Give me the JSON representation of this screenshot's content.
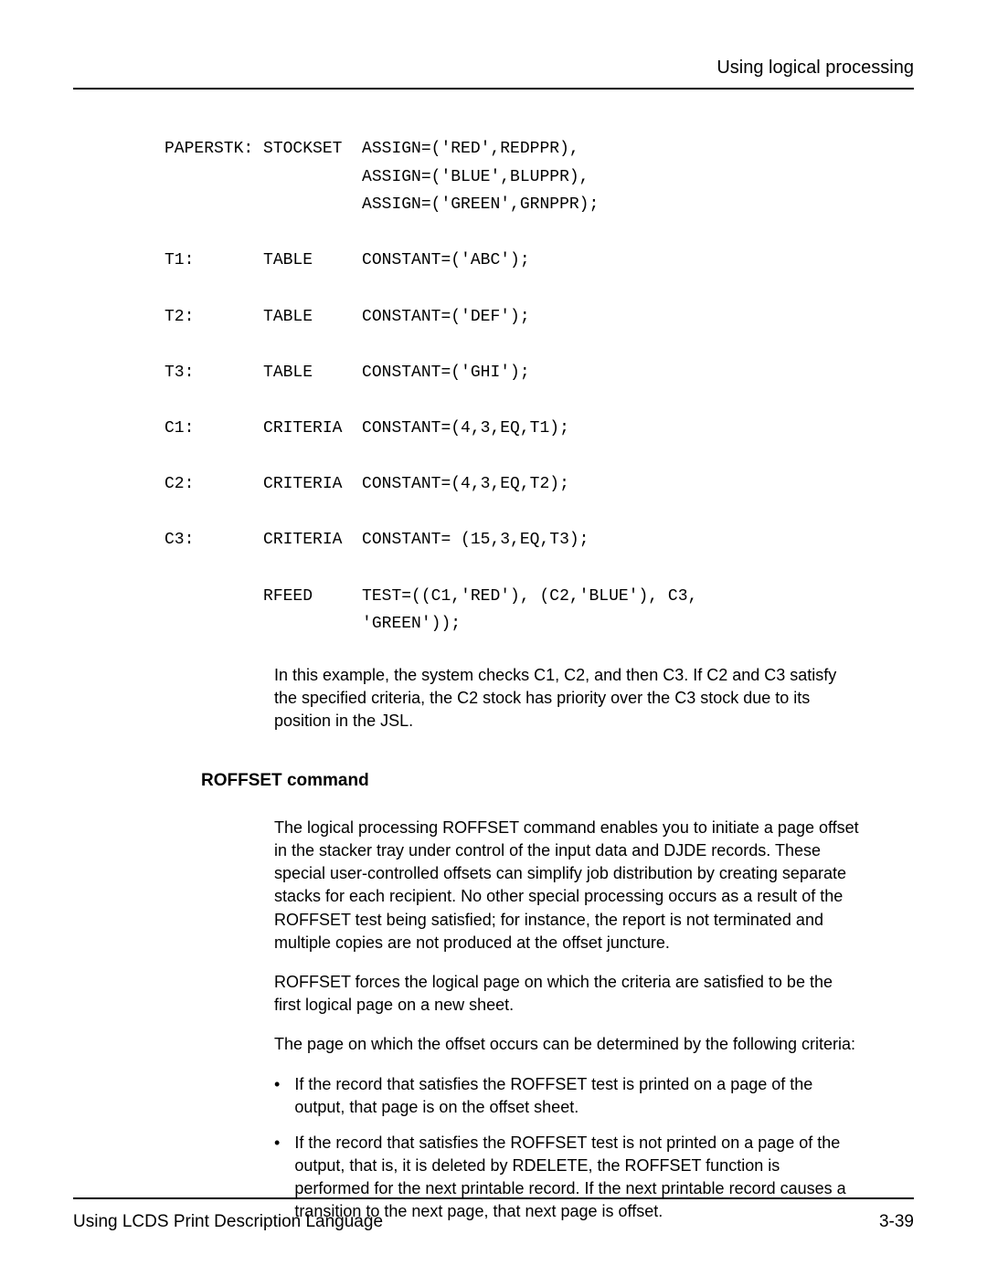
{
  "header": {
    "title": "Using logical processing"
  },
  "code": {
    "lines": [
      "PAPERSTK: STOCKSET  ASSIGN=('RED',REDPPR),",
      "                    ASSIGN=('BLUE',BLUPPR),",
      "                    ASSIGN=('GREEN',GRNPPR);",
      "",
      "T1:       TABLE     CONSTANT=('ABC');",
      "",
      "T2:       TABLE     CONSTANT=('DEF');",
      "",
      "T3:       TABLE     CONSTANT=('GHI');",
      "",
      "C1:       CRITERIA  CONSTANT=(4,3,EQ,T1);",
      "",
      "C2:       CRITERIA  CONSTANT=(4,3,EQ,T2);",
      "",
      "C3:       CRITERIA  CONSTANT= (15,3,EQ,T3);",
      "",
      "          RFEED     TEST=((C1,'RED'), (C2,'BLUE'), C3,",
      "                    'GREEN'));"
    ],
    "explanation": "In this example, the system checks C1, C2, and then C3. If C2 and C3 satisfy the specified criteria, the C2 stock has priority over the C3 stock due to its position in the JSL."
  },
  "section": {
    "heading": "ROFFSET command",
    "para1": "The logical processing ROFFSET command enables you to initiate a page offset in the stacker tray under control of the input data and DJDE records. These special user-controlled offsets can simplify job distribution by creating separate stacks for each recipient. No other special processing occurs as a result of the ROFFSET test being satisfied; for instance, the report is not terminated and multiple copies are not produced at the offset juncture.",
    "para2": "ROFFSET forces the logical page on which the criteria are satisfied to be the first logical page on a new sheet.",
    "para3": "The page on which the offset occurs can be determined by the following criteria:",
    "bullets": [
      "If the record that satisfies the ROFFSET test is printed on a page of the output, that page is on the offset sheet.",
      "If the record that satisfies the ROFFSET test is not printed on a page of the output, that is, it is deleted by RDELETE, the ROFFSET function is performed for the next printable record. If the next printable record causes a transition to the next page, that next page is offset."
    ]
  },
  "footer": {
    "left": "Using LCDS Print Description Language",
    "right": "3-39"
  }
}
